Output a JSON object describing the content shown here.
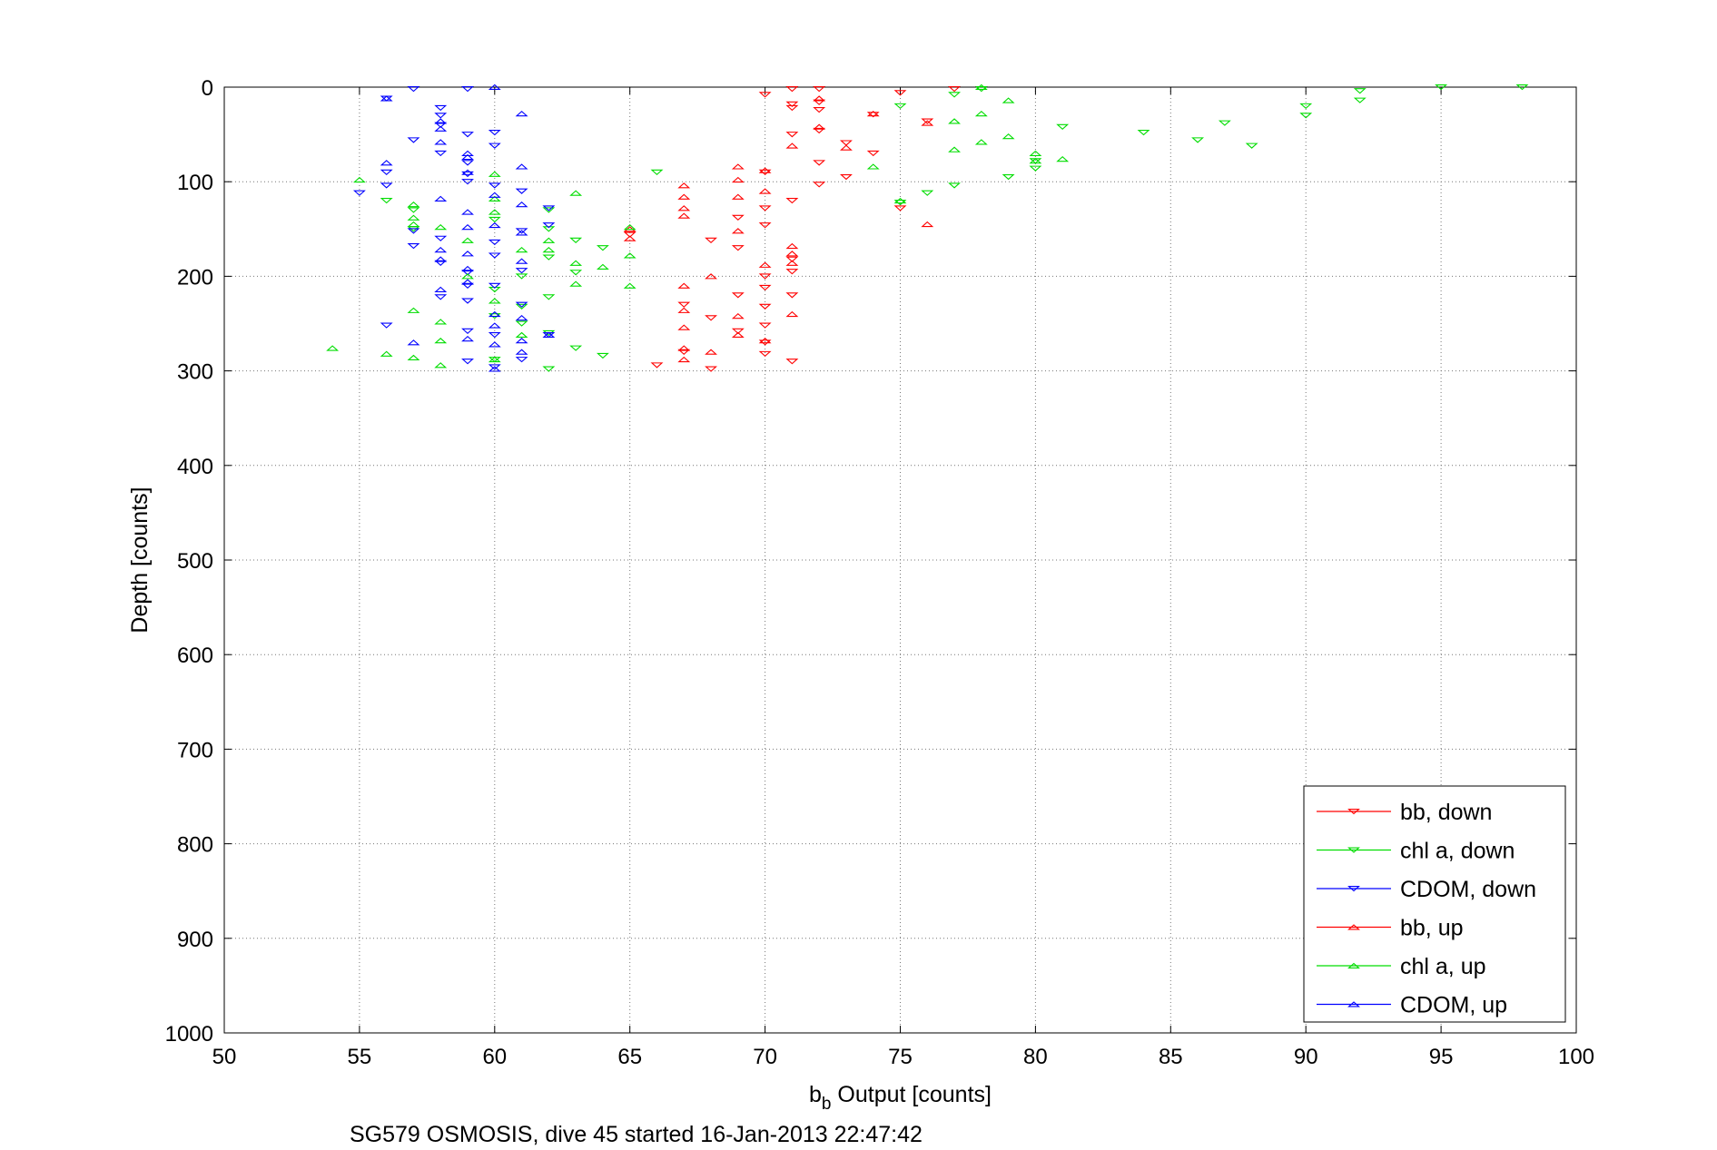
{
  "chart_data": {
    "type": "scatter",
    "xlabel_main": "b",
    "xlabel_sub": "b",
    "xlabel_rest": " Output [counts]",
    "ylabel": "Depth [counts]",
    "caption": "SG579 OSMOSIS, dive 45 started 16-Jan-2013 22:47:42",
    "xlim": [
      50,
      100
    ],
    "ylim": [
      0,
      1000
    ],
    "y_reversed": true,
    "grid": "dotted",
    "legend_position": "bottom-right",
    "xticks": [
      50,
      55,
      60,
      65,
      70,
      75,
      80,
      85,
      90,
      95,
      100
    ],
    "yticks": [
      0,
      100,
      200,
      300,
      400,
      500,
      600,
      700,
      800,
      900,
      1000
    ],
    "series": [
      {
        "name": "bb, down",
        "color": "#ff0000",
        "marker": "triangle-down",
        "points": [
          [
            71,
            2
          ],
          [
            72,
            2
          ],
          [
            70,
            8
          ],
          [
            77,
            2
          ],
          [
            75,
            6
          ],
          [
            71,
            18
          ],
          [
            72,
            16
          ],
          [
            71,
            22
          ],
          [
            72,
            24
          ],
          [
            76,
            36
          ],
          [
            74,
            29
          ],
          [
            72,
            46
          ],
          [
            71,
            50
          ],
          [
            73,
            59
          ],
          [
            74,
            70
          ],
          [
            72,
            80
          ],
          [
            73,
            95
          ],
          [
            72,
            103
          ],
          [
            70,
            90
          ],
          [
            71,
            120
          ],
          [
            75,
            128
          ],
          [
            70,
            128
          ],
          [
            69,
            138
          ],
          [
            70,
            146
          ],
          [
            65,
            156
          ],
          [
            68,
            162
          ],
          [
            69,
            170
          ],
          [
            70,
            200
          ],
          [
            71,
            195
          ],
          [
            71,
            182
          ],
          [
            70,
            212
          ],
          [
            67,
            230
          ],
          [
            68,
            244
          ],
          [
            69,
            220
          ],
          [
            70,
            232
          ],
          [
            71,
            220
          ],
          [
            70,
            252
          ],
          [
            67,
            280
          ],
          [
            69,
            258
          ],
          [
            70,
            270
          ],
          [
            70,
            282
          ],
          [
            71,
            290
          ],
          [
            68,
            298
          ],
          [
            66,
            294
          ]
        ]
      },
      {
        "name": "chl a, down",
        "color": "#00dd00",
        "marker": "triangle-down",
        "points": [
          [
            95,
            0
          ],
          [
            98,
            0
          ],
          [
            92,
            4
          ],
          [
            92,
            14
          ],
          [
            90,
            20
          ],
          [
            90,
            30
          ],
          [
            87,
            38
          ],
          [
            86,
            56
          ],
          [
            84,
            48
          ],
          [
            88,
            62
          ],
          [
            81,
            42
          ],
          [
            80,
            78
          ],
          [
            80,
            86
          ],
          [
            79,
            95
          ],
          [
            77,
            104
          ],
          [
            76,
            112
          ],
          [
            75,
            122
          ],
          [
            78,
            2
          ],
          [
            77,
            8
          ],
          [
            75,
            20
          ],
          [
            66,
            90
          ],
          [
            60,
            140
          ],
          [
            57,
            150
          ],
          [
            56,
            120
          ],
          [
            62,
            130
          ],
          [
            62,
            150
          ],
          [
            63,
            162
          ],
          [
            64,
            170
          ],
          [
            62,
            180
          ],
          [
            63,
            196
          ],
          [
            61,
            200
          ],
          [
            60,
            214
          ],
          [
            61,
            232
          ],
          [
            62,
            222
          ],
          [
            60,
            242
          ],
          [
            61,
            250
          ],
          [
            62,
            260
          ],
          [
            63,
            276
          ],
          [
            64,
            284
          ],
          [
            60,
            288
          ],
          [
            62,
            298
          ],
          [
            57,
            130
          ]
        ]
      },
      {
        "name": "CDOM, down",
        "color": "#0000ff",
        "marker": "triangle-down",
        "points": [
          [
            57,
            2
          ],
          [
            59,
            2
          ],
          [
            56,
            12
          ],
          [
            58,
            22
          ],
          [
            58,
            30
          ],
          [
            58,
            40
          ],
          [
            59,
            50
          ],
          [
            57,
            56
          ],
          [
            58,
            70
          ],
          [
            59,
            80
          ],
          [
            60,
            62
          ],
          [
            56,
            90
          ],
          [
            56,
            104
          ],
          [
            55,
            112
          ],
          [
            57,
            152
          ],
          [
            58,
            160
          ],
          [
            57,
            168
          ],
          [
            58,
            186
          ],
          [
            59,
            196
          ],
          [
            59,
            210
          ],
          [
            58,
            222
          ],
          [
            59,
            226
          ],
          [
            60,
            210
          ],
          [
            61,
            194
          ],
          [
            62,
            128
          ],
          [
            62,
            146
          ],
          [
            61,
            110
          ],
          [
            59,
            92
          ],
          [
            59,
            100
          ],
          [
            60,
            48
          ],
          [
            60,
            104
          ],
          [
            60,
            178
          ],
          [
            61,
            152
          ],
          [
            60,
            164
          ],
          [
            56,
            252
          ],
          [
            59,
            258
          ],
          [
            59,
            290
          ],
          [
            60,
            296
          ],
          [
            61,
            288
          ],
          [
            62,
            262
          ],
          [
            61,
            230
          ],
          [
            60,
            262
          ]
        ]
      },
      {
        "name": "bb, up",
        "color": "#ff0000",
        "marker": "triangle-up",
        "points": [
          [
            72,
            42
          ],
          [
            72,
            12
          ],
          [
            71,
            62
          ],
          [
            73,
            64
          ],
          [
            74,
            28
          ],
          [
            76,
            38
          ],
          [
            76,
            145
          ],
          [
            70,
            88
          ],
          [
            69,
            84
          ],
          [
            69,
            98
          ],
          [
            70,
            110
          ],
          [
            69,
            116
          ],
          [
            69,
            152
          ],
          [
            67,
            104
          ],
          [
            67,
            116
          ],
          [
            67,
            128
          ],
          [
            67,
            136
          ],
          [
            65,
            160
          ],
          [
            71,
            168
          ],
          [
            71,
            176
          ],
          [
            71,
            186
          ],
          [
            70,
            188
          ],
          [
            68,
            200
          ],
          [
            67,
            210
          ],
          [
            67,
            236
          ],
          [
            67,
            254
          ],
          [
            68,
            280
          ],
          [
            69,
            262
          ],
          [
            69,
            242
          ],
          [
            70,
            268
          ],
          [
            71,
            240
          ],
          [
            67,
            288
          ],
          [
            67,
            276
          ],
          [
            65,
            150
          ]
        ]
      },
      {
        "name": "chl a, up",
        "color": "#00dd00",
        "marker": "triangle-up",
        "points": [
          [
            78,
            0
          ],
          [
            77,
            36
          ],
          [
            78,
            28
          ],
          [
            79,
            14
          ],
          [
            79,
            52
          ],
          [
            81,
            76
          ],
          [
            80,
            70
          ],
          [
            80,
            78
          ],
          [
            78,
            58
          ],
          [
            77,
            66
          ],
          [
            74,
            84
          ],
          [
            75,
            120
          ],
          [
            55,
            98
          ],
          [
            57,
            124
          ],
          [
            57,
            138
          ],
          [
            57,
            145
          ],
          [
            58,
            148
          ],
          [
            59,
            162
          ],
          [
            60,
            132
          ],
          [
            60,
            118
          ],
          [
            62,
            162
          ],
          [
            62,
            172
          ],
          [
            63,
            112
          ],
          [
            63,
            186
          ],
          [
            63,
            208
          ],
          [
            64,
            190
          ],
          [
            65,
            178
          ],
          [
            65,
            210
          ],
          [
            65,
            148
          ],
          [
            60,
            92
          ],
          [
            61,
            172
          ],
          [
            60,
            226
          ],
          [
            61,
            262
          ],
          [
            60,
            288
          ],
          [
            59,
            200
          ],
          [
            58,
            248
          ],
          [
            58,
            268
          ],
          [
            57,
            236
          ],
          [
            56,
            282
          ],
          [
            57,
            286
          ],
          [
            58,
            294
          ],
          [
            54,
            276
          ]
        ]
      },
      {
        "name": "CDOM, up",
        "color": "#0000ff",
        "marker": "triangle-up",
        "points": [
          [
            60,
            0
          ],
          [
            56,
            12
          ],
          [
            61,
            28
          ],
          [
            58,
            36
          ],
          [
            58,
            44
          ],
          [
            58,
            58
          ],
          [
            59,
            70
          ],
          [
            59,
            74
          ],
          [
            59,
            90
          ],
          [
            56,
            80
          ],
          [
            58,
            118
          ],
          [
            59,
            132
          ],
          [
            60,
            114
          ],
          [
            61,
            84
          ],
          [
            61,
            124
          ],
          [
            61,
            154
          ],
          [
            60,
            146
          ],
          [
            61,
            184
          ],
          [
            59,
            148
          ],
          [
            59,
            176
          ],
          [
            58,
            172
          ],
          [
            58,
            214
          ],
          [
            59,
            206
          ],
          [
            59,
            266
          ],
          [
            57,
            270
          ],
          [
            60,
            240
          ],
          [
            60,
            252
          ],
          [
            61,
            244
          ],
          [
            61,
            268
          ],
          [
            61,
            280
          ],
          [
            62,
            262
          ],
          [
            60,
            272
          ],
          [
            60,
            298
          ],
          [
            58,
            182
          ],
          [
            59,
            192
          ]
        ]
      }
    ]
  }
}
